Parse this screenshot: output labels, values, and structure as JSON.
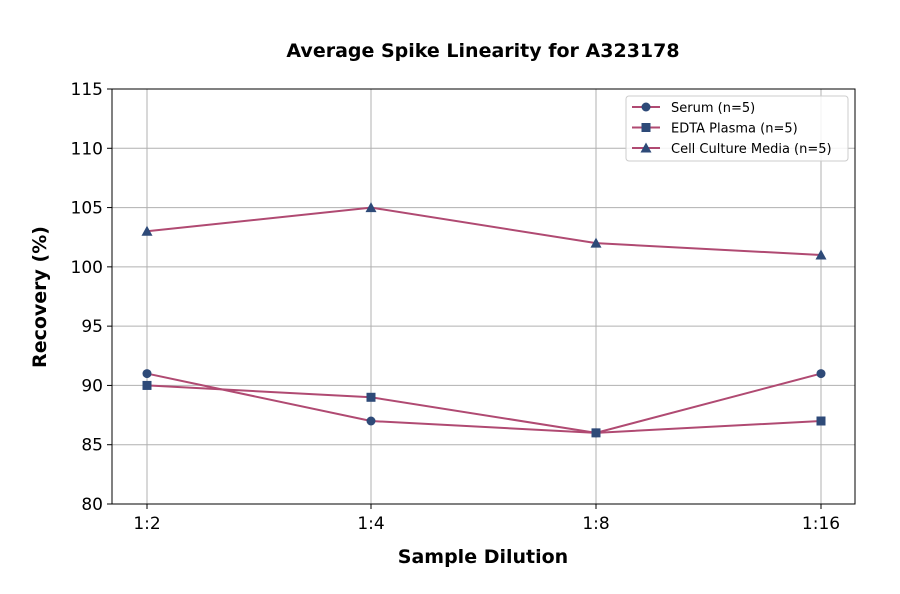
{
  "chart_data": {
    "type": "line",
    "title": "Average Spike Linearity for A323178",
    "xlabel": "Sample Dilution",
    "ylabel": "Recovery (%)",
    "categories": [
      "1:2",
      "1:4",
      "1:8",
      "1:16"
    ],
    "ylim": [
      80,
      115
    ],
    "yticks": [
      80,
      85,
      90,
      95,
      100,
      105,
      110,
      115
    ],
    "grid": true,
    "legend_position": "top-right",
    "line_color": "#b04a72",
    "marker_color": "#2e4a78",
    "series": [
      {
        "name": "Serum (n=5)",
        "marker": "circle",
        "values": [
          91,
          87,
          86,
          91
        ]
      },
      {
        "name": "EDTA Plasma (n=5)",
        "marker": "square",
        "values": [
          90,
          89,
          86,
          87
        ]
      },
      {
        "name": "Cell Culture Media (n=5)",
        "marker": "triangle",
        "values": [
          103,
          105,
          102,
          101
        ]
      }
    ]
  }
}
